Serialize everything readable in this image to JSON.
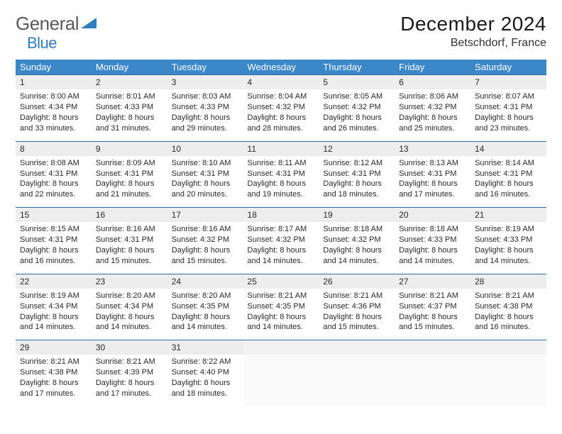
{
  "logo": {
    "text1": "General",
    "text2": "Blue"
  },
  "title": "December 2024",
  "location": "Betschdorf, France",
  "colors": {
    "header_bg": "#3b87c8",
    "header_text": "#ffffff",
    "daynum_bg": "#ededed",
    "rule": "#2f6fa3",
    "logo_gray": "#5a5a5a",
    "logo_blue": "#2f7ebd"
  },
  "weekdays": [
    "Sunday",
    "Monday",
    "Tuesday",
    "Wednesday",
    "Thursday",
    "Friday",
    "Saturday"
  ],
  "weeks": [
    [
      {
        "n": "1",
        "sr": "8:00 AM",
        "ss": "4:34 PM",
        "dlh": "8",
        "dlm": "33"
      },
      {
        "n": "2",
        "sr": "8:01 AM",
        "ss": "4:33 PM",
        "dlh": "8",
        "dlm": "31"
      },
      {
        "n": "3",
        "sr": "8:03 AM",
        "ss": "4:33 PM",
        "dlh": "8",
        "dlm": "29"
      },
      {
        "n": "4",
        "sr": "8:04 AM",
        "ss": "4:32 PM",
        "dlh": "8",
        "dlm": "28"
      },
      {
        "n": "5",
        "sr": "8:05 AM",
        "ss": "4:32 PM",
        "dlh": "8",
        "dlm": "26"
      },
      {
        "n": "6",
        "sr": "8:06 AM",
        "ss": "4:32 PM",
        "dlh": "8",
        "dlm": "25"
      },
      {
        "n": "7",
        "sr": "8:07 AM",
        "ss": "4:31 PM",
        "dlh": "8",
        "dlm": "23"
      }
    ],
    [
      {
        "n": "8",
        "sr": "8:08 AM",
        "ss": "4:31 PM",
        "dlh": "8",
        "dlm": "22"
      },
      {
        "n": "9",
        "sr": "8:09 AM",
        "ss": "4:31 PM",
        "dlh": "8",
        "dlm": "21"
      },
      {
        "n": "10",
        "sr": "8:10 AM",
        "ss": "4:31 PM",
        "dlh": "8",
        "dlm": "20"
      },
      {
        "n": "11",
        "sr": "8:11 AM",
        "ss": "4:31 PM",
        "dlh": "8",
        "dlm": "19"
      },
      {
        "n": "12",
        "sr": "8:12 AM",
        "ss": "4:31 PM",
        "dlh": "8",
        "dlm": "18"
      },
      {
        "n": "13",
        "sr": "8:13 AM",
        "ss": "4:31 PM",
        "dlh": "8",
        "dlm": "17"
      },
      {
        "n": "14",
        "sr": "8:14 AM",
        "ss": "4:31 PM",
        "dlh": "8",
        "dlm": "16"
      }
    ],
    [
      {
        "n": "15",
        "sr": "8:15 AM",
        "ss": "4:31 PM",
        "dlh": "8",
        "dlm": "16"
      },
      {
        "n": "16",
        "sr": "8:16 AM",
        "ss": "4:31 PM",
        "dlh": "8",
        "dlm": "15"
      },
      {
        "n": "17",
        "sr": "8:16 AM",
        "ss": "4:32 PM",
        "dlh": "8",
        "dlm": "15"
      },
      {
        "n": "18",
        "sr": "8:17 AM",
        "ss": "4:32 PM",
        "dlh": "8",
        "dlm": "14"
      },
      {
        "n": "19",
        "sr": "8:18 AM",
        "ss": "4:32 PM",
        "dlh": "8",
        "dlm": "14"
      },
      {
        "n": "20",
        "sr": "8:18 AM",
        "ss": "4:33 PM",
        "dlh": "8",
        "dlm": "14"
      },
      {
        "n": "21",
        "sr": "8:19 AM",
        "ss": "4:33 PM",
        "dlh": "8",
        "dlm": "14"
      }
    ],
    [
      {
        "n": "22",
        "sr": "8:19 AM",
        "ss": "4:34 PM",
        "dlh": "8",
        "dlm": "14"
      },
      {
        "n": "23",
        "sr": "8:20 AM",
        "ss": "4:34 PM",
        "dlh": "8",
        "dlm": "14"
      },
      {
        "n": "24",
        "sr": "8:20 AM",
        "ss": "4:35 PM",
        "dlh": "8",
        "dlm": "14"
      },
      {
        "n": "25",
        "sr": "8:21 AM",
        "ss": "4:35 PM",
        "dlh": "8",
        "dlm": "14"
      },
      {
        "n": "26",
        "sr": "8:21 AM",
        "ss": "4:36 PM",
        "dlh": "8",
        "dlm": "15"
      },
      {
        "n": "27",
        "sr": "8:21 AM",
        "ss": "4:37 PM",
        "dlh": "8",
        "dlm": "15"
      },
      {
        "n": "28",
        "sr": "8:21 AM",
        "ss": "4:38 PM",
        "dlh": "8",
        "dlm": "16"
      }
    ],
    [
      {
        "n": "29",
        "sr": "8:21 AM",
        "ss": "4:38 PM",
        "dlh": "8",
        "dlm": "17"
      },
      {
        "n": "30",
        "sr": "8:21 AM",
        "ss": "4:39 PM",
        "dlh": "8",
        "dlm": "17"
      },
      {
        "n": "31",
        "sr": "8:22 AM",
        "ss": "4:40 PM",
        "dlh": "8",
        "dlm": "18"
      },
      null,
      null,
      null,
      null
    ]
  ],
  "labels": {
    "sunrise": "Sunrise: ",
    "sunset": "Sunset: ",
    "daylight_a": "Daylight: ",
    "daylight_b": " hours and ",
    "daylight_c": " minutes."
  }
}
